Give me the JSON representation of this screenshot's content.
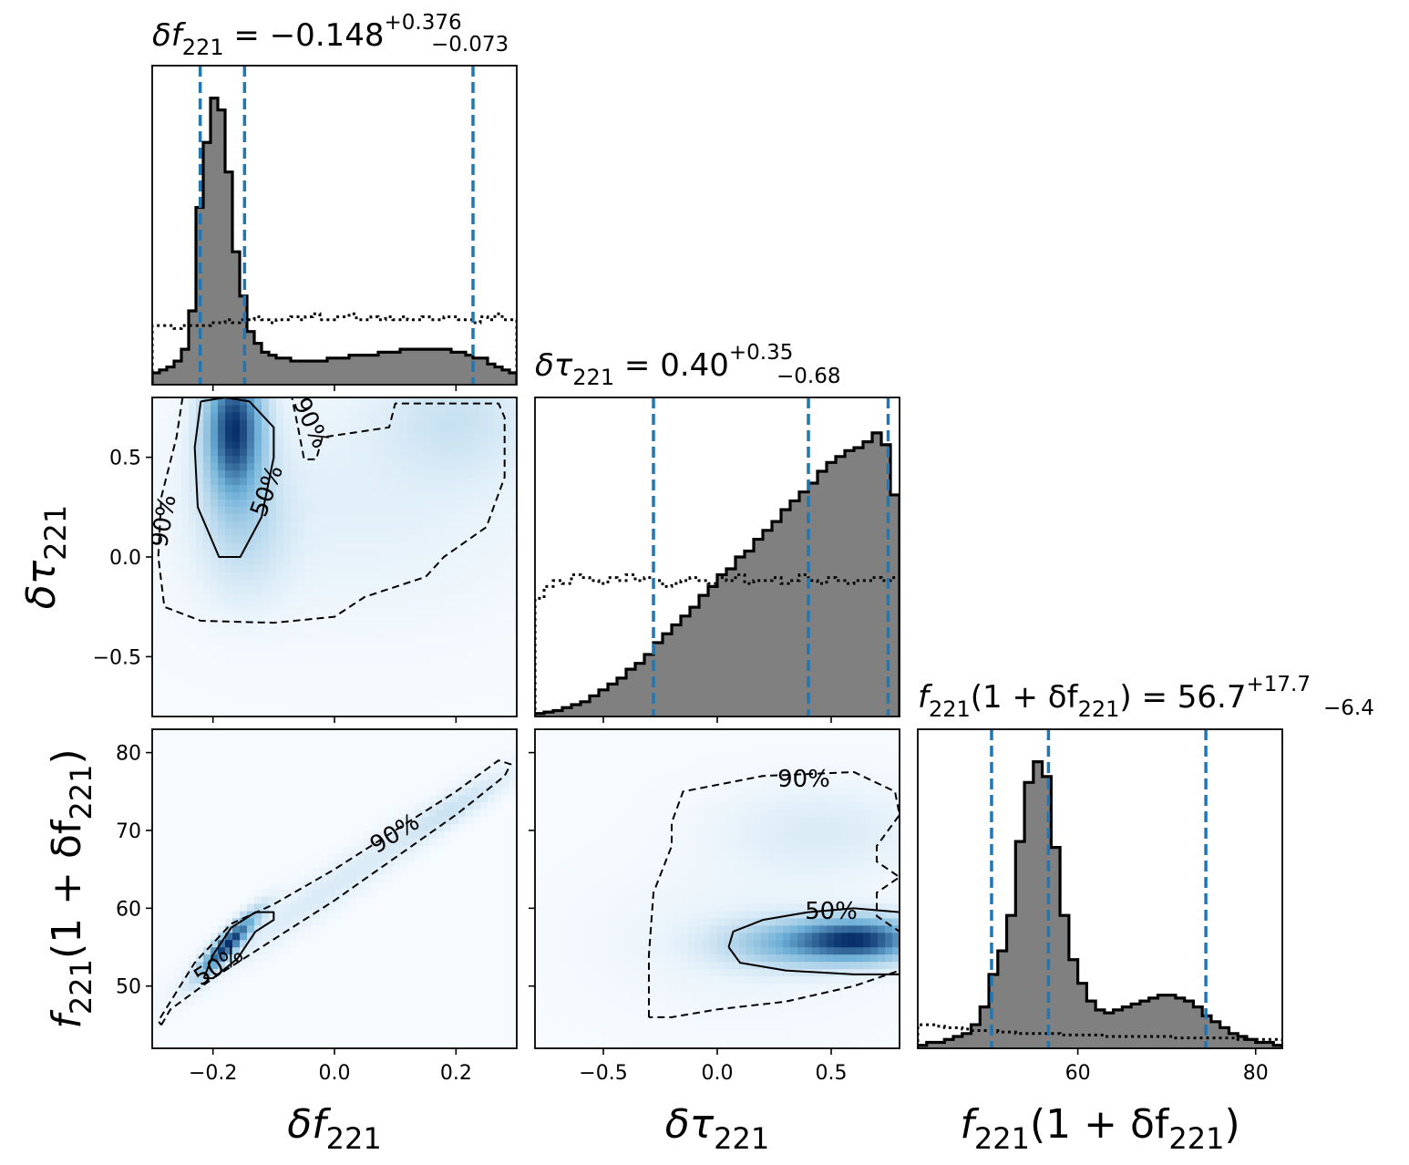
{
  "colors": {
    "hist_fill": "#808080",
    "hist_edge": "#000000",
    "quantile_line": "#1f77b4",
    "density_low": "#f7fbff",
    "density_high": "#08306b"
  },
  "chart_data": [
    {
      "type": "histogram",
      "panel": "hist-df",
      "title": {
        "main": "δf",
        "sub": "221",
        "eq": " = −0.148",
        "sup": "+0.376",
        "low": "−0.073"
      },
      "xlim": [
        -0.3,
        0.3
      ],
      "x_ticks": [
        -0.2,
        0.0,
        0.2
      ],
      "x": [
        -0.3,
        -0.288,
        -0.276,
        -0.264,
        -0.252,
        -0.24,
        -0.228,
        -0.216,
        -0.204,
        -0.192,
        -0.18,
        -0.168,
        -0.156,
        -0.144,
        -0.132,
        -0.12,
        -0.108,
        -0.096,
        -0.084,
        -0.072,
        -0.06,
        -0.048,
        -0.036,
        -0.024,
        -0.012,
        0.0,
        0.012,
        0.024,
        0.036,
        0.048,
        0.06,
        0.072,
        0.084,
        0.096,
        0.108,
        0.12,
        0.132,
        0.144,
        0.156,
        0.168,
        0.18,
        0.192,
        0.204,
        0.216,
        0.228,
        0.24,
        0.252,
        0.264,
        0.276,
        0.288,
        0.3
      ],
      "posterior": [
        0.04,
        0.05,
        0.06,
        0.08,
        0.12,
        0.25,
        0.6,
        0.82,
        0.97,
        0.93,
        0.72,
        0.45,
        0.3,
        0.18,
        0.14,
        0.11,
        0.1,
        0.09,
        0.09,
        0.08,
        0.08,
        0.08,
        0.08,
        0.08,
        0.09,
        0.09,
        0.09,
        0.1,
        0.1,
        0.1,
        0.1,
        0.11,
        0.11,
        0.11,
        0.12,
        0.12,
        0.12,
        0.12,
        0.12,
        0.12,
        0.12,
        0.11,
        0.11,
        0.1,
        0.09,
        0.09,
        0.07,
        0.06,
        0.05,
        0.04
      ],
      "prior": [
        0.2,
        0.2,
        0.2,
        0.19,
        0.2,
        0.2,
        0.2,
        0.2,
        0.21,
        0.21,
        0.22,
        0.21,
        0.22,
        0.22,
        0.23,
        0.22,
        0.21,
        0.22,
        0.22,
        0.23,
        0.22,
        0.23,
        0.24,
        0.22,
        0.22,
        0.23,
        0.23,
        0.24,
        0.22,
        0.22,
        0.23,
        0.22,
        0.23,
        0.22,
        0.23,
        0.22,
        0.22,
        0.23,
        0.22,
        0.22,
        0.23,
        0.23,
        0.22,
        0.22,
        0.21,
        0.23,
        0.22,
        0.24,
        0.22,
        0.22
      ],
      "quantiles": [
        -0.221,
        -0.148,
        0.228
      ],
      "ymax": 1.0
    },
    {
      "type": "histogram",
      "panel": "hist-dtau",
      "title": {
        "main": "δτ",
        "sub": "221",
        "eq": " = 0.40",
        "sup": "+0.35",
        "low": "−0.68"
      },
      "xlim": [
        -0.8,
        0.8
      ],
      "x_ticks": [
        -0.5,
        0.0,
        0.5
      ],
      "x": [
        -0.8,
        -0.76,
        -0.72,
        -0.68,
        -0.64,
        -0.6,
        -0.56,
        -0.52,
        -0.48,
        -0.44,
        -0.4,
        -0.36,
        -0.32,
        -0.28,
        -0.24,
        -0.2,
        -0.16,
        -0.12,
        -0.08,
        -0.04,
        0.0,
        0.04,
        0.08,
        0.12,
        0.16,
        0.2,
        0.24,
        0.28,
        0.32,
        0.36,
        0.4,
        0.44,
        0.48,
        0.52,
        0.56,
        0.6,
        0.64,
        0.68,
        0.72,
        0.76,
        0.8
      ],
      "posterior": [
        0.01,
        0.015,
        0.02,
        0.03,
        0.04,
        0.05,
        0.07,
        0.09,
        0.11,
        0.13,
        0.16,
        0.18,
        0.21,
        0.25,
        0.28,
        0.31,
        0.34,
        0.37,
        0.41,
        0.44,
        0.48,
        0.5,
        0.54,
        0.56,
        0.6,
        0.63,
        0.66,
        0.7,
        0.73,
        0.76,
        0.79,
        0.83,
        0.86,
        0.88,
        0.9,
        0.91,
        0.93,
        0.96,
        0.92,
        0.75
      ],
      "prior": [
        0.4,
        0.44,
        0.46,
        0.45,
        0.48,
        0.47,
        0.46,
        0.45,
        0.47,
        0.46,
        0.48,
        0.46,
        0.47,
        0.46,
        0.44,
        0.45,
        0.46,
        0.47,
        0.46,
        0.45,
        0.47,
        0.46,
        0.48,
        0.45,
        0.46,
        0.46,
        0.47,
        0.45,
        0.46,
        0.48,
        0.46,
        0.45,
        0.47,
        0.46,
        0.45,
        0.46,
        0.46,
        0.47,
        0.46,
        0.47
      ],
      "quantiles": [
        -0.28,
        0.4,
        0.75
      ],
      "ymax": 1.0
    },
    {
      "type": "histogram",
      "panel": "hist-f",
      "title": {
        "main": "f",
        "sub": "221",
        "expr": "(1 + δf",
        "sub2": "221",
        "expr_end": ")",
        "eq": " = 56.7",
        "sup": "+17.7",
        "low": "−6.4"
      },
      "xlim": [
        42,
        83
      ],
      "x_ticks": [
        60,
        80
      ],
      "x": [
        42,
        43,
        44,
        45,
        46,
        47,
        48,
        49,
        50,
        51,
        52,
        53,
        54,
        55,
        56,
        57,
        58,
        59,
        60,
        61,
        62,
        63,
        64,
        65,
        66,
        67,
        68,
        69,
        70,
        71,
        72,
        73,
        74,
        75,
        76,
        77,
        78,
        79,
        80,
        81,
        82,
        83
      ],
      "posterior": [
        0.01,
        0.02,
        0.02,
        0.03,
        0.04,
        0.05,
        0.08,
        0.14,
        0.25,
        0.33,
        0.45,
        0.7,
        0.9,
        0.97,
        0.92,
        0.68,
        0.45,
        0.3,
        0.22,
        0.16,
        0.13,
        0.12,
        0.13,
        0.14,
        0.15,
        0.16,
        0.17,
        0.18,
        0.18,
        0.17,
        0.16,
        0.14,
        0.11,
        0.09,
        0.07,
        0.05,
        0.04,
        0.03,
        0.02,
        0.02,
        0.01
      ],
      "prior": [
        0.08,
        0.08,
        0.075,
        0.07,
        0.07,
        0.065,
        0.06,
        0.06,
        0.06,
        0.055,
        0.055,
        0.05,
        0.05,
        0.05,
        0.05,
        0.05,
        0.045,
        0.045,
        0.045,
        0.045,
        0.045,
        0.04,
        0.04,
        0.04,
        0.04,
        0.04,
        0.04,
        0.04,
        0.04,
        0.035,
        0.035,
        0.035,
        0.035,
        0.035,
        0.035,
        0.035,
        0.03,
        0.03,
        0.03,
        0.03,
        0.03
      ],
      "quantiles": [
        50.3,
        56.7,
        74.4
      ],
      "ymax": 1.0
    },
    {
      "type": "heatmap",
      "panel": "joint-df-dtau",
      "xlim": [
        -0.3,
        0.3
      ],
      "ylim": [
        -0.8,
        0.8
      ],
      "y_ticks": [
        -0.5,
        0.0,
        0.5
      ],
      "ylabel": {
        "main": "δτ",
        "sub": "221"
      },
      "blobs": [
        {
          "x": -0.165,
          "y": 0.65,
          "sx": 0.03,
          "sy": 0.22,
          "w": 1.0
        },
        {
          "x": -0.15,
          "y": 0.2,
          "sx": 0.05,
          "sy": 0.25,
          "w": 0.18
        },
        {
          "x": 0.2,
          "y": 0.7,
          "sx": 0.08,
          "sy": 0.2,
          "w": 0.12
        },
        {
          "x": 0.05,
          "y": 0.3,
          "sx": 0.2,
          "sy": 0.4,
          "w": 0.05
        }
      ],
      "contours": [
        {
          "label": "90%",
          "style": "dashed",
          "points": [
            [
              -0.25,
              0.8
            ],
            [
              -0.26,
              0.6
            ],
            [
              -0.285,
              0.3
            ],
            [
              -0.29,
              0.0
            ],
            [
              -0.28,
              -0.25
            ],
            [
              -0.22,
              -0.32
            ],
            [
              -0.1,
              -0.33
            ],
            [
              0.0,
              -0.3
            ],
            [
              0.05,
              -0.2
            ],
            [
              0.15,
              -0.1
            ],
            [
              0.18,
              0.0
            ],
            [
              0.25,
              0.15
            ],
            [
              0.28,
              0.4
            ],
            [
              0.28,
              0.7
            ],
            [
              0.27,
              0.77
            ],
            [
              0.1,
              0.77
            ],
            [
              0.09,
              0.65
            ],
            [
              -0.02,
              0.6
            ],
            [
              -0.03,
              0.49
            ],
            [
              -0.05,
              0.49
            ],
            [
              -0.06,
              0.65
            ],
            [
              -0.07,
              0.8
            ]
          ]
        },
        {
          "label": "50%",
          "style": "solid",
          "points": [
            [
              -0.22,
              0.78
            ],
            [
              -0.23,
              0.55
            ],
            [
              -0.225,
              0.25
            ],
            [
              -0.19,
              0.0
            ],
            [
              -0.155,
              0.0
            ],
            [
              -0.12,
              0.2
            ],
            [
              -0.1,
              0.5
            ],
            [
              -0.1,
              0.65
            ],
            [
              -0.14,
              0.78
            ],
            [
              -0.18,
              0.8
            ],
            [
              -0.22,
              0.78
            ]
          ]
        }
      ],
      "contour_labels": [
        {
          "text": "90%",
          "x": -0.28,
          "y": 0.18,
          "angle": -80
        },
        {
          "text": "50%",
          "x": -0.11,
          "y": 0.33,
          "angle": -70
        },
        {
          "text": "90%",
          "x": -0.04,
          "y": 0.67,
          "angle": 65
        }
      ]
    },
    {
      "type": "heatmap",
      "panel": "joint-df-f",
      "xlim": [
        -0.3,
        0.3
      ],
      "ylim": [
        42,
        83
      ],
      "x_ticks": [
        -0.2,
        0.0,
        0.2
      ],
      "y_ticks": [
        50,
        60,
        70,
        80
      ],
      "xlabel": {
        "main": "δf",
        "sub": "221"
      },
      "ylabel": {
        "main": "f",
        "sub": "221",
        "expr": "(1 + δf",
        "sub2": "221",
        "expr_end": ")"
      },
      "blobs": [
        {
          "x": -0.175,
          "y": 55.5,
          "sx": 0.03,
          "sy": 2.5,
          "w": 1.0,
          "rho": 0.9
        },
        {
          "x": 0.0,
          "y": 63,
          "sx": 0.15,
          "sy": 8,
          "w": 0.08,
          "rho": 0.97
        },
        {
          "x": 0.2,
          "y": 73,
          "sx": 0.06,
          "sy": 3,
          "w": 0.1,
          "rho": 0.9
        }
      ],
      "contours": [
        {
          "label": "90%",
          "style": "dashed",
          "points": [
            [
              -0.285,
              45.0
            ],
            [
              -0.27,
              47.0
            ],
            [
              -0.2,
              51.0
            ],
            [
              -0.1,
              56.0
            ],
            [
              0.0,
              61.0
            ],
            [
              0.1,
              66.5
            ],
            [
              0.2,
              72.0
            ],
            [
              0.28,
              77.0
            ],
            [
              0.29,
              78.5
            ],
            [
              0.27,
              79.0
            ],
            [
              0.2,
              75.0
            ],
            [
              0.1,
              70.0
            ],
            [
              0.0,
              65.0
            ],
            [
              -0.1,
              60.5
            ],
            [
              -0.17,
              58.0
            ],
            [
              -0.23,
              53.0
            ],
            [
              -0.27,
              48.0
            ],
            [
              -0.29,
              45.5
            ],
            [
              -0.285,
              45.0
            ]
          ]
        },
        {
          "label": "50%",
          "style": "solid",
          "points": [
            [
              -0.215,
              51.0
            ],
            [
              -0.2,
              54.0
            ],
            [
              -0.17,
              57.5
            ],
            [
              -0.13,
              59.5
            ],
            [
              -0.1,
              59.5
            ],
            [
              -0.1,
              58.5
            ],
            [
              -0.13,
              57.0
            ],
            [
              -0.16,
              53.5
            ],
            [
              -0.2,
              51.0
            ],
            [
              -0.215,
              51.0
            ]
          ]
        }
      ],
      "contour_labels": [
        {
          "text": "90%",
          "x": 0.1,
          "y": 69.5,
          "angle": -32
        },
        {
          "text": "50%",
          "x": -0.19,
          "y": 52.5,
          "angle": -32
        }
      ]
    },
    {
      "type": "heatmap",
      "panel": "joint-dtau-f",
      "xlim": [
        -0.8,
        0.8
      ],
      "ylim": [
        42,
        83
      ],
      "x_ticks": [
        -0.5,
        0.0,
        0.5
      ],
      "y_ticks": [
        50,
        60,
        70,
        80
      ],
      "xlabel": {
        "main": "δτ",
        "sub": "221"
      },
      "blobs": [
        {
          "x": 0.62,
          "y": 56.0,
          "sx": 0.18,
          "sy": 1.8,
          "w": 1.0
        },
        {
          "x": 0.3,
          "y": 55.5,
          "sx": 0.2,
          "sy": 2.0,
          "w": 0.35
        },
        {
          "x": 0.45,
          "y": 70.0,
          "sx": 0.3,
          "sy": 4.0,
          "w": 0.08
        },
        {
          "x": 0.1,
          "y": 56.0,
          "sx": 0.4,
          "sy": 6.0,
          "w": 0.04
        }
      ],
      "contours": [
        {
          "label": "90%",
          "style": "dashed",
          "points": [
            [
              -0.3,
              46.0
            ],
            [
              -0.3,
              54.0
            ],
            [
              -0.28,
              62.0
            ],
            [
              -0.2,
              68.0
            ],
            [
              -0.2,
              71.0
            ],
            [
              -0.15,
              75.0
            ],
            [
              0.2,
              77.0
            ],
            [
              0.6,
              77.5
            ],
            [
              0.78,
              75.0
            ],
            [
              0.8,
              72.0
            ],
            [
              0.7,
              68.0
            ],
            [
              0.7,
              66.0
            ],
            [
              0.8,
              64.0
            ],
            [
              0.7,
              62.0
            ],
            [
              0.7,
              59.0
            ],
            [
              0.8,
              57.0
            ],
            [
              0.8,
              52.0
            ],
            [
              0.6,
              50.0
            ],
            [
              0.3,
              48.0
            ],
            [
              0.0,
              47.0
            ],
            [
              -0.2,
              46.0
            ],
            [
              -0.3,
              46.0
            ]
          ]
        },
        {
          "label": "50%",
          "style": "solid",
          "points": [
            [
              0.05,
              55.0
            ],
            [
              0.1,
              53.0
            ],
            [
              0.3,
              52.0
            ],
            [
              0.6,
              51.5
            ],
            [
              0.8,
              51.5
            ],
            [
              0.8,
              59.5
            ],
            [
              0.6,
              60.0
            ],
            [
              0.4,
              59.5
            ],
            [
              0.2,
              58.5
            ],
            [
              0.07,
              57.0
            ],
            [
              0.05,
              55.0
            ]
          ]
        }
      ],
      "contour_labels": [
        {
          "text": "90%",
          "x": 0.38,
          "y": 76.5,
          "angle": 0
        },
        {
          "text": "50%",
          "x": 0.5,
          "y": 59.5,
          "angle": 0
        }
      ]
    }
  ]
}
